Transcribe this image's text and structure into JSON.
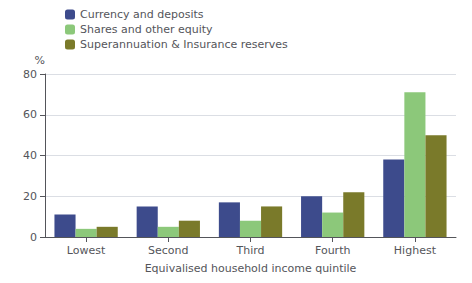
{
  "chart_data": {
    "type": "bar",
    "xlabel": "Equivalised household income quintile",
    "ylabel": "%",
    "categories": [
      "Lowest",
      "Second",
      "Third",
      "Fourth",
      "Highest"
    ],
    "series": [
      {
        "name": "Currency and deposits",
        "values": [
          11,
          15,
          17,
          20,
          38
        ],
        "color": "#3d4b8c"
      },
      {
        "name": "Shares and other equity",
        "values": [
          4,
          5,
          8,
          12,
          71
        ],
        "color": "#8cc87a"
      },
      {
        "name": "Superannuation & Insurance reserves",
        "values": [
          5,
          8,
          15,
          22,
          50
        ],
        "color": "#7a7a2a"
      }
    ],
    "ylim": [
      0,
      80
    ],
    "yticks": [
      0,
      20,
      40,
      60,
      80
    ],
    "grid": true,
    "legend": "upper left"
  }
}
